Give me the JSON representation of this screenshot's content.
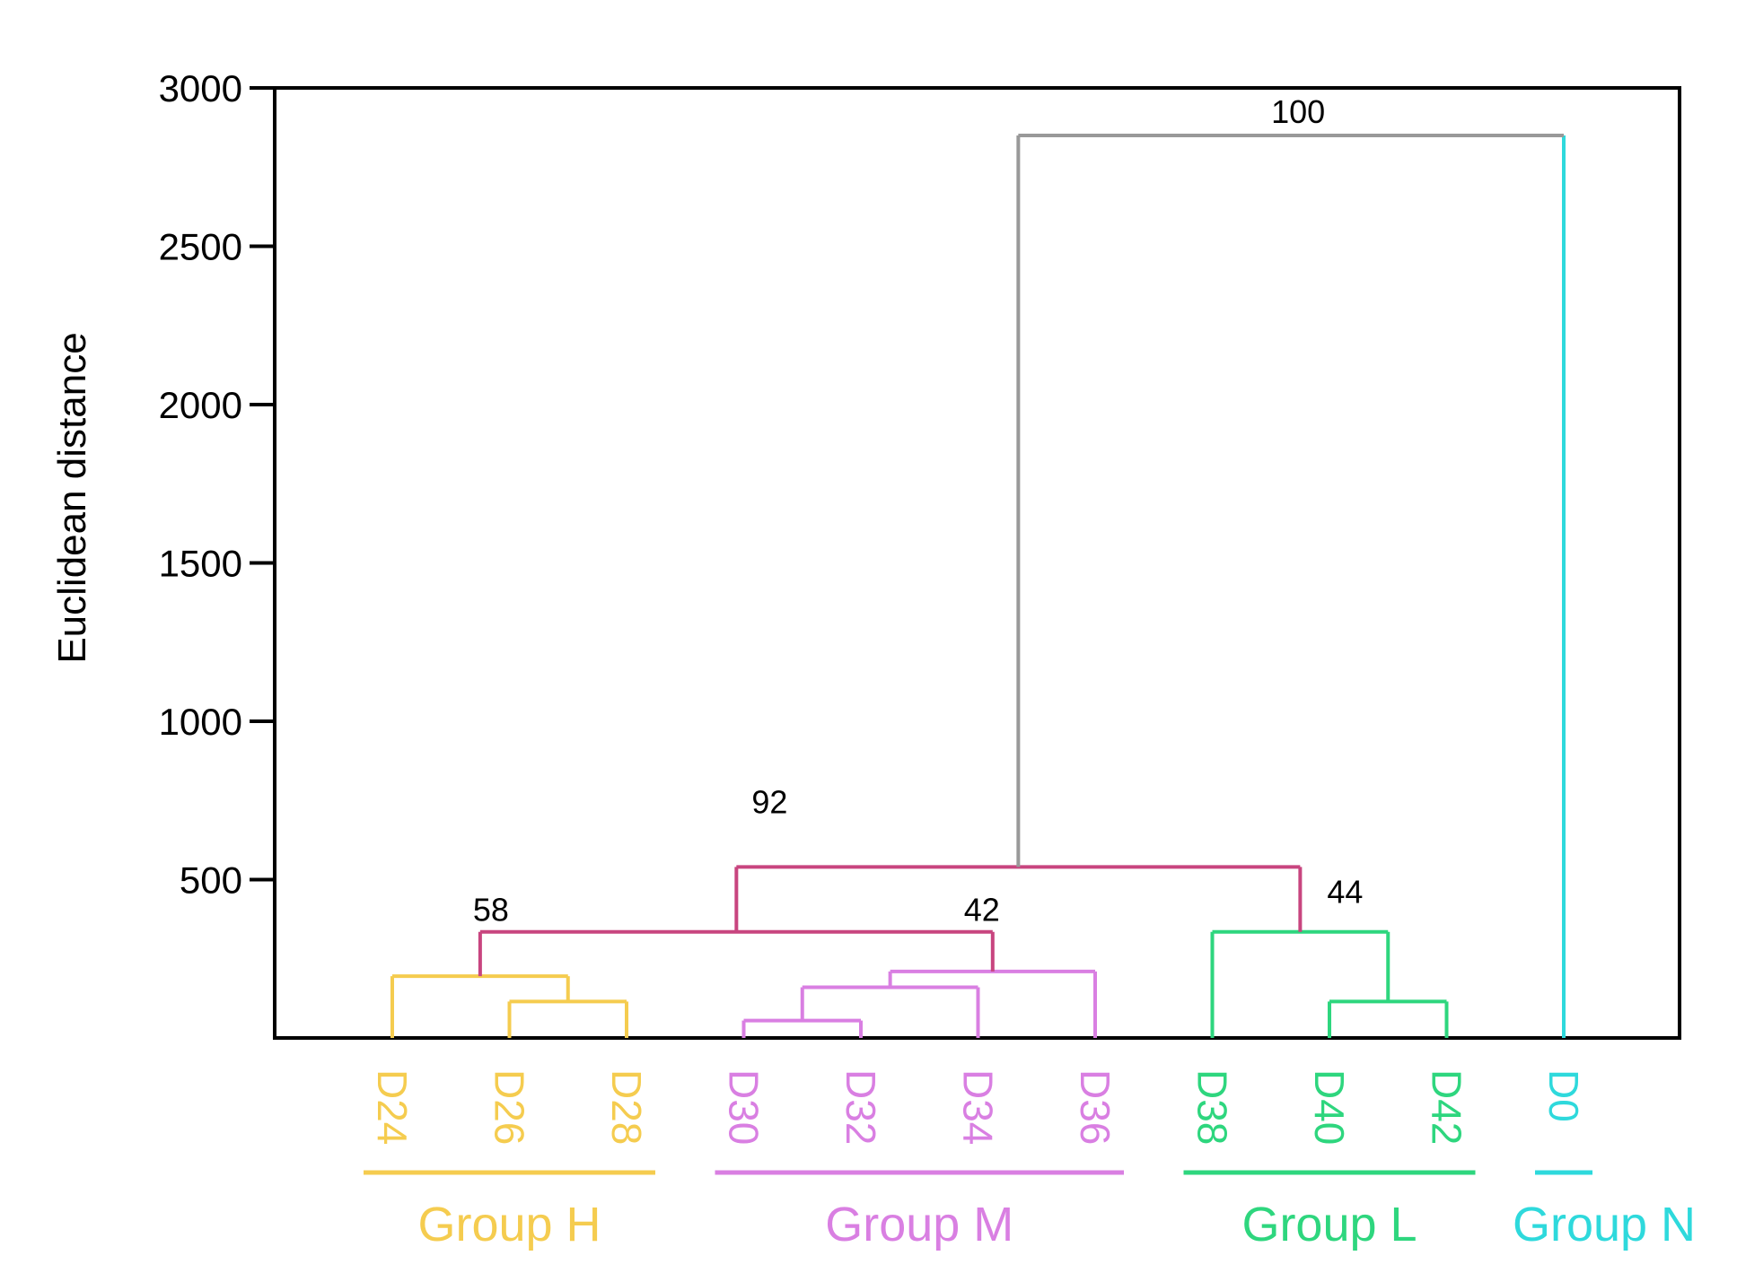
{
  "chart_data": {
    "type": "dendrogram",
    "title": "",
    "ylabel": "Euclidean distance",
    "xlabel": "",
    "ylim": [
      0,
      3000
    ],
    "yticks": [
      500,
      1000,
      1500,
      2000,
      2500,
      3000
    ],
    "leaves": [
      {
        "name": "D24",
        "group": "H"
      },
      {
        "name": "D26",
        "group": "H"
      },
      {
        "name": "D28",
        "group": "H"
      },
      {
        "name": "D30",
        "group": "M"
      },
      {
        "name": "D32",
        "group": "M"
      },
      {
        "name": "D34",
        "group": "M"
      },
      {
        "name": "D36",
        "group": "M"
      },
      {
        "name": "D38",
        "group": "L"
      },
      {
        "name": "D40",
        "group": "L"
      },
      {
        "name": "D42",
        "group": "L"
      },
      {
        "name": "D0",
        "group": "N"
      }
    ],
    "groups": [
      {
        "id": "H",
        "label": "Group H",
        "color": "#F5CC4F"
      },
      {
        "id": "M",
        "label": "Group M",
        "color": "#D97FE2"
      },
      {
        "id": "L",
        "label": "Group L",
        "color": "#2ED67E"
      },
      {
        "id": "N",
        "label": "Group N",
        "color": "#2ED9DC"
      }
    ],
    "merges": [
      {
        "id": "h1",
        "children": [
          "D26",
          "D28"
        ],
        "height": 115,
        "color": "#F5CC4F"
      },
      {
        "id": "h2",
        "children": [
          "D24",
          "h1"
        ],
        "height": 195,
        "color": "#F5CC4F"
      },
      {
        "id": "m1",
        "children": [
          "D30",
          "D32"
        ],
        "height": 55,
        "color": "#D97FE2"
      },
      {
        "id": "m2",
        "children": [
          "m1",
          "D34"
        ],
        "height": 160,
        "color": "#D97FE2"
      },
      {
        "id": "m3",
        "children": [
          "m2",
          "D36"
        ],
        "height": 210,
        "color": "#D97FE2"
      },
      {
        "id": "l1",
        "children": [
          "D40",
          "D42"
        ],
        "height": 115,
        "color": "#2ED67E"
      },
      {
        "id": "l2",
        "children": [
          "D38",
          "l1"
        ],
        "height": 335,
        "color": "#2ED67E"
      },
      {
        "id": "hm",
        "children": [
          "h2",
          "m3"
        ],
        "height": 335,
        "color": "#C8457F",
        "label": "",
        "left_label": "58",
        "right_label": "42"
      },
      {
        "id": "hml",
        "children": [
          "hm",
          "l2"
        ],
        "height": 540,
        "color": "#C8457F",
        "label": "92",
        "right_label": "44"
      },
      {
        "id": "root",
        "children": [
          "hml",
          "D0"
        ],
        "height": 2850,
        "color": "#999999",
        "label": "100"
      }
    ],
    "leaf_stems": {
      "D0": "#2ED9DC"
    },
    "node_labels": [
      "100",
      "92",
      "58",
      "42",
      "44"
    ]
  }
}
